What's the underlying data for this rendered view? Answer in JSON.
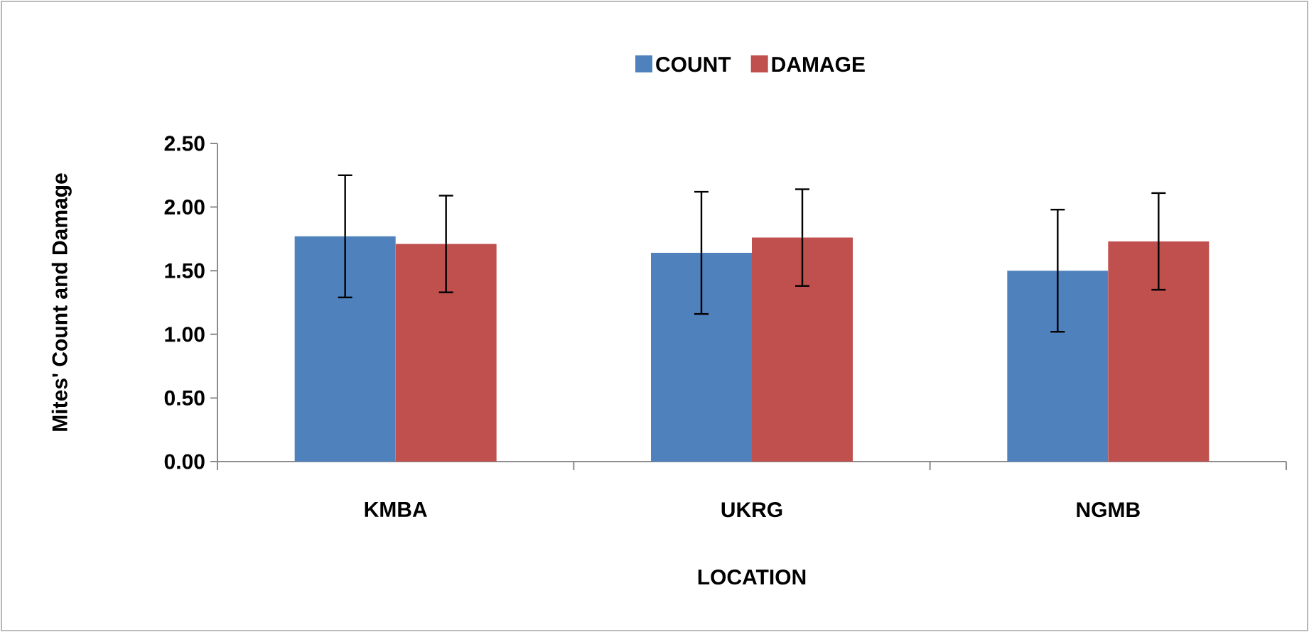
{
  "chart_data": {
    "type": "bar",
    "xlabel": "LOCATION",
    "ylabel": "Mites' Count and Damage",
    "categories": [
      "KMBA",
      "UKRG",
      "NGMB"
    ],
    "series": [
      {
        "name": "COUNT",
        "color": "#4f81bd",
        "values": [
          1.77,
          1.64,
          1.5
        ],
        "errors": [
          0.48,
          0.48,
          0.48
        ]
      },
      {
        "name": "DAMAGE",
        "color": "#c0504d",
        "values": [
          1.71,
          1.76,
          1.73
        ],
        "errors": [
          0.38,
          0.38,
          0.38
        ]
      }
    ],
    "ylim": [
      0,
      2.5
    ],
    "yticks": [
      {
        "value": 0,
        "label": "0.00"
      },
      {
        "value": 0.5,
        "label": "0.50"
      },
      {
        "value": 1,
        "label": "1.00"
      },
      {
        "value": 1.5,
        "label": "1.50"
      },
      {
        "value": 2,
        "label": "2.00"
      },
      {
        "value": 2.5,
        "label": "2.50"
      }
    ],
    "grid": false,
    "legend": "top"
  }
}
